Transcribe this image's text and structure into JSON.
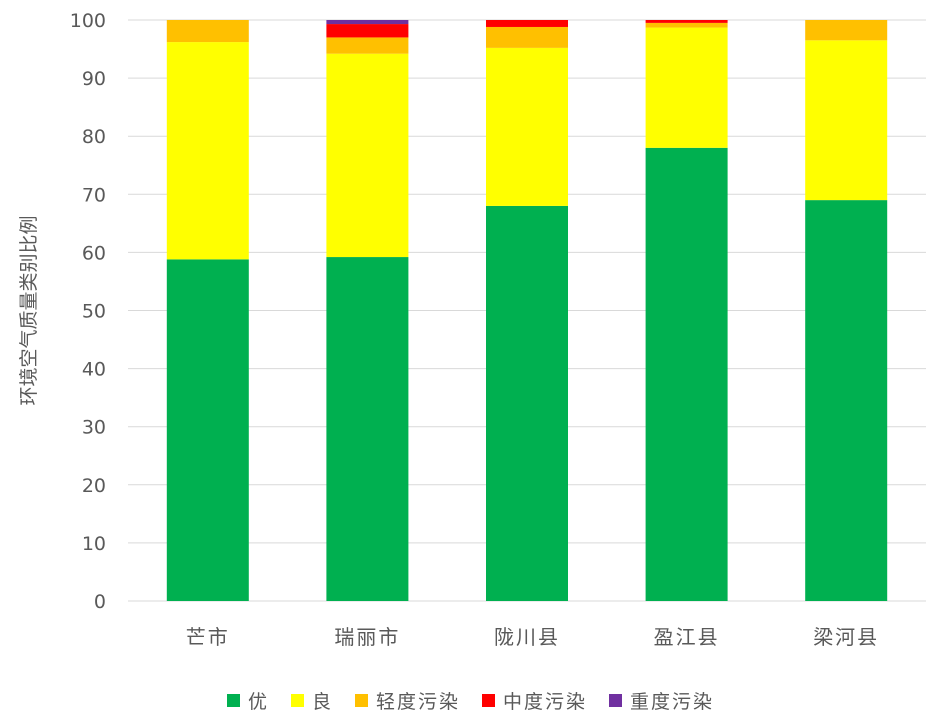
{
  "chart_data": {
    "type": "bar",
    "stacked": true,
    "title": "",
    "xlabel": "",
    "ylabel": "环境空气质量类别比例",
    "ylim": [
      0,
      100
    ],
    "yticks": [
      0,
      10,
      20,
      30,
      40,
      50,
      60,
      70,
      80,
      90,
      100
    ],
    "grid": true,
    "legend_position": "bottom",
    "categories": [
      "芒市",
      "瑞丽市",
      "陇川县",
      "盈江县",
      "梁河县"
    ],
    "series": [
      {
        "name": "优",
        "color": "#00B050",
        "values": [
          58.8,
          59.2,
          68.0,
          78.0,
          69.0
        ]
      },
      {
        "name": "良",
        "color": "#FFFF00",
        "values": [
          37.4,
          35.0,
          27.2,
          20.7,
          27.5
        ]
      },
      {
        "name": "轻度污染",
        "color": "#FFC000",
        "values": [
          3.8,
          2.8,
          3.6,
          0.8,
          3.5
        ]
      },
      {
        "name": "中度污染",
        "color": "#FF0000",
        "values": [
          0,
          2.3,
          1.2,
          0.5,
          0
        ]
      },
      {
        "name": "重度污染",
        "color": "#7030A0",
        "values": [
          0,
          0.7,
          0,
          0,
          0
        ]
      }
    ]
  }
}
